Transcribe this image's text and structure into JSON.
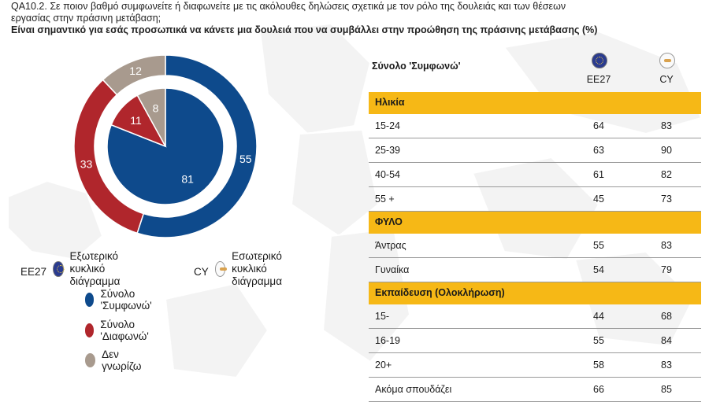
{
  "question": {
    "line1": "QA10.2. Σε ποιον βαθμό συμφωνείτε ή διαφωνείτε με τις ακόλουθες δηλώσεις σχετικά με τον ρόλο της δουλειάς και των θέσεων",
    "line2": "εργασίας στην πράσινη μετάβαση;",
    "line3": "Είναι σημαντικό για εσάς προσωπικά να κάνετε μια δουλειά που να συμβάλλει στην προώθηση της πράσινης μετάβασης (%)"
  },
  "colors": {
    "agree": "#0e4a8c",
    "disagree": "#b0262c",
    "dk": "#a89a8e",
    "section": "#f6b816"
  },
  "chart_data": [
    {
      "type": "pie",
      "ring": "outer",
      "name": "EE27",
      "categories": [
        "Σύνολο 'Συμφωνώ'",
        "Σύνολο 'Διαφωνώ'",
        "Δεν γνωρίζω"
      ],
      "values": [
        55,
        33,
        12
      ]
    },
    {
      "type": "pie",
      "ring": "inner",
      "name": "CY",
      "categories": [
        "Σύνολο 'Συμφωνώ'",
        "Σύνολο 'Διαφωνώ'",
        "Δεν γνωρίζω"
      ],
      "values": [
        81,
        11,
        8
      ]
    },
    {
      "type": "table",
      "title": "Σύνολο 'Συμφωνώ'",
      "columns": [
        "EE27",
        "CY"
      ],
      "rows": [
        {
          "section": "Ηλικία"
        },
        {
          "label": "15-24",
          "values": [
            64,
            83
          ]
        },
        {
          "label": "25-39",
          "values": [
            63,
            90
          ]
        },
        {
          "label": "40-54",
          "values": [
            61,
            82
          ]
        },
        {
          "label": "55 +",
          "values": [
            45,
            73
          ]
        },
        {
          "section": "ΦΥΛΟ"
        },
        {
          "label": "Άντρας",
          "values": [
            55,
            83
          ]
        },
        {
          "label": "Γυναίκα",
          "values": [
            54,
            79
          ]
        },
        {
          "section": "Εκπαίδευση (Ολοκλήρωση)"
        },
        {
          "label": "15-",
          "values": [
            44,
            68
          ]
        },
        {
          "label": "16-19",
          "values": [
            55,
            84
          ]
        },
        {
          "label": "20+",
          "values": [
            58,
            83
          ]
        },
        {
          "label": "Ακόμα σπουδάζει",
          "values": [
            66,
            85
          ]
        }
      ]
    }
  ],
  "legend": {
    "outer_code": "EE27",
    "outer_label_1": "Εξωτερικό κυκλικό",
    "outer_label_2": "διάγραμμα",
    "inner_code": "CY",
    "inner_label_1": "Εσωτερικό κυκλικό",
    "inner_label_2": "διάγραμμα",
    "agree": "Σύνολο 'Συμφωνώ'",
    "disagree": "Σύνολο 'Διαφωνώ'",
    "dk": "Δεν γνωρίζω"
  }
}
